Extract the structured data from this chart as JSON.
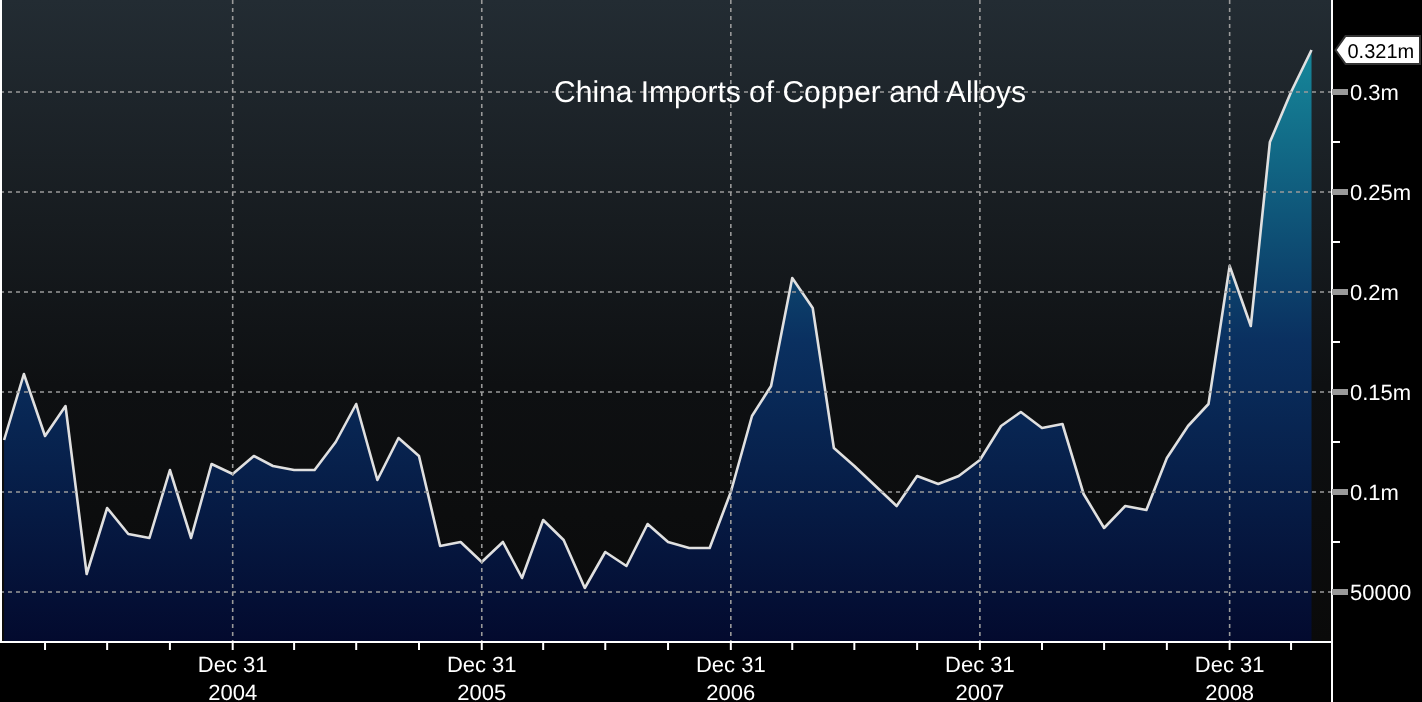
{
  "chart_data": {
    "type": "area",
    "title": "China Imports of Copper and Alloys",
    "x": [
      "2004-01-31",
      "2004-02-29",
      "2004-03-31",
      "2004-04-30",
      "2004-05-31",
      "2004-06-30",
      "2004-07-31",
      "2004-08-31",
      "2004-09-30",
      "2004-10-31",
      "2004-11-30",
      "2004-12-31",
      "2005-01-31",
      "2005-02-28",
      "2005-03-31",
      "2005-04-30",
      "2005-05-31",
      "2005-06-30",
      "2005-07-31",
      "2005-08-31",
      "2005-09-30",
      "2005-10-31",
      "2005-11-30",
      "2005-12-31",
      "2006-01-31",
      "2006-02-28",
      "2006-03-31",
      "2006-04-30",
      "2006-05-31",
      "2006-06-30",
      "2006-07-31",
      "2006-08-31",
      "2006-09-30",
      "2006-10-31",
      "2006-11-30",
      "2006-12-31",
      "2007-01-31",
      "2007-02-28",
      "2007-03-31",
      "2007-04-30",
      "2007-05-31",
      "2007-06-30",
      "2007-07-31",
      "2007-08-31",
      "2007-09-30",
      "2007-10-31",
      "2007-11-30",
      "2007-12-31",
      "2008-01-31",
      "2008-02-29",
      "2008-03-31",
      "2008-04-30",
      "2008-05-31",
      "2008-06-30",
      "2008-07-31",
      "2008-08-31",
      "2008-09-30",
      "2008-10-31",
      "2008-11-30",
      "2008-12-31",
      "2009-01-31",
      "2009-02-28",
      "2009-03-31",
      "2009-04-30"
    ],
    "series": [
      {
        "color": "#e0e0e0",
        "values": [
          126000,
          159000,
          128000,
          143000,
          59000,
          92000,
          79000,
          77000,
          111000,
          77000,
          114000,
          109000,
          118000,
          113000,
          111000,
          111000,
          125000,
          144000,
          106000,
          127000,
          118000,
          73000,
          75000,
          65000,
          75000,
          57000,
          86000,
          76000,
          52000,
          70000,
          63000,
          84000,
          75000,
          72000,
          72000,
          100000,
          138000,
          153000,
          207000,
          192000,
          122000,
          113000,
          103000,
          93000,
          108000,
          104000,
          108000,
          116000,
          133000,
          140000,
          132000,
          134000,
          99000,
          82000,
          93000,
          91000,
          117000,
          133000,
          144000,
          213000,
          183000,
          275000,
          300000,
          321000
        ]
      }
    ],
    "xlim": [
      "2004-01-25",
      "2009-05-30"
    ],
    "xticks": [
      {
        "value": "2004-03-31",
        "label": null
      },
      {
        "value": "2004-06-30",
        "label": null
      },
      {
        "value": "2004-09-30",
        "label": null
      },
      {
        "value": "2004-12-31",
        "label": "Dec 31\n2004"
      },
      {
        "value": "2005-03-31",
        "label": null
      },
      {
        "value": "2005-06-30",
        "label": null
      },
      {
        "value": "2005-09-30",
        "label": null
      },
      {
        "value": "2005-12-31",
        "label": "Dec 31\n2005"
      },
      {
        "value": "2006-03-31",
        "label": null
      },
      {
        "value": "2006-06-30",
        "label": null
      },
      {
        "value": "2006-09-30",
        "label": null
      },
      {
        "value": "2006-12-31",
        "label": "Dec 31\n2006"
      },
      {
        "value": "2007-03-31",
        "label": null
      },
      {
        "value": "2007-06-30",
        "label": null
      },
      {
        "value": "2007-09-30",
        "label": null
      },
      {
        "value": "2007-12-31",
        "label": "Dec 31\n2007"
      },
      {
        "value": "2008-03-31",
        "label": null
      },
      {
        "value": "2008-06-30",
        "label": null
      },
      {
        "value": "2008-09-30",
        "label": null
      },
      {
        "value": "2008-12-31",
        "label": "Dec 31\n2008"
      },
      {
        "value": "2009-03-31",
        "label": null
      }
    ],
    "ylim": [
      25000,
      346000
    ],
    "yticks": [
      50000,
      {
        "value": 75000,
        "label": null
      },
      {
        "value": 100000,
        "label": "0.1m"
      },
      {
        "value": 125000,
        "label": null
      },
      {
        "value": 150000,
        "label": "0.15m"
      },
      {
        "value": 175000,
        "label": null
      },
      {
        "value": 200000,
        "label": "0.2m"
      },
      {
        "value": 225000,
        "label": null
      },
      {
        "value": 250000,
        "label": "0.25m"
      },
      {
        "value": 275000,
        "label": null
      },
      {
        "value": 300000,
        "label": "0.3m"
      }
    ],
    "grid": true,
    "annotations": [
      {
        "text": "0.321m",
        "x": "2009-04-30",
        "y": 321000
      }
    ]
  }
}
